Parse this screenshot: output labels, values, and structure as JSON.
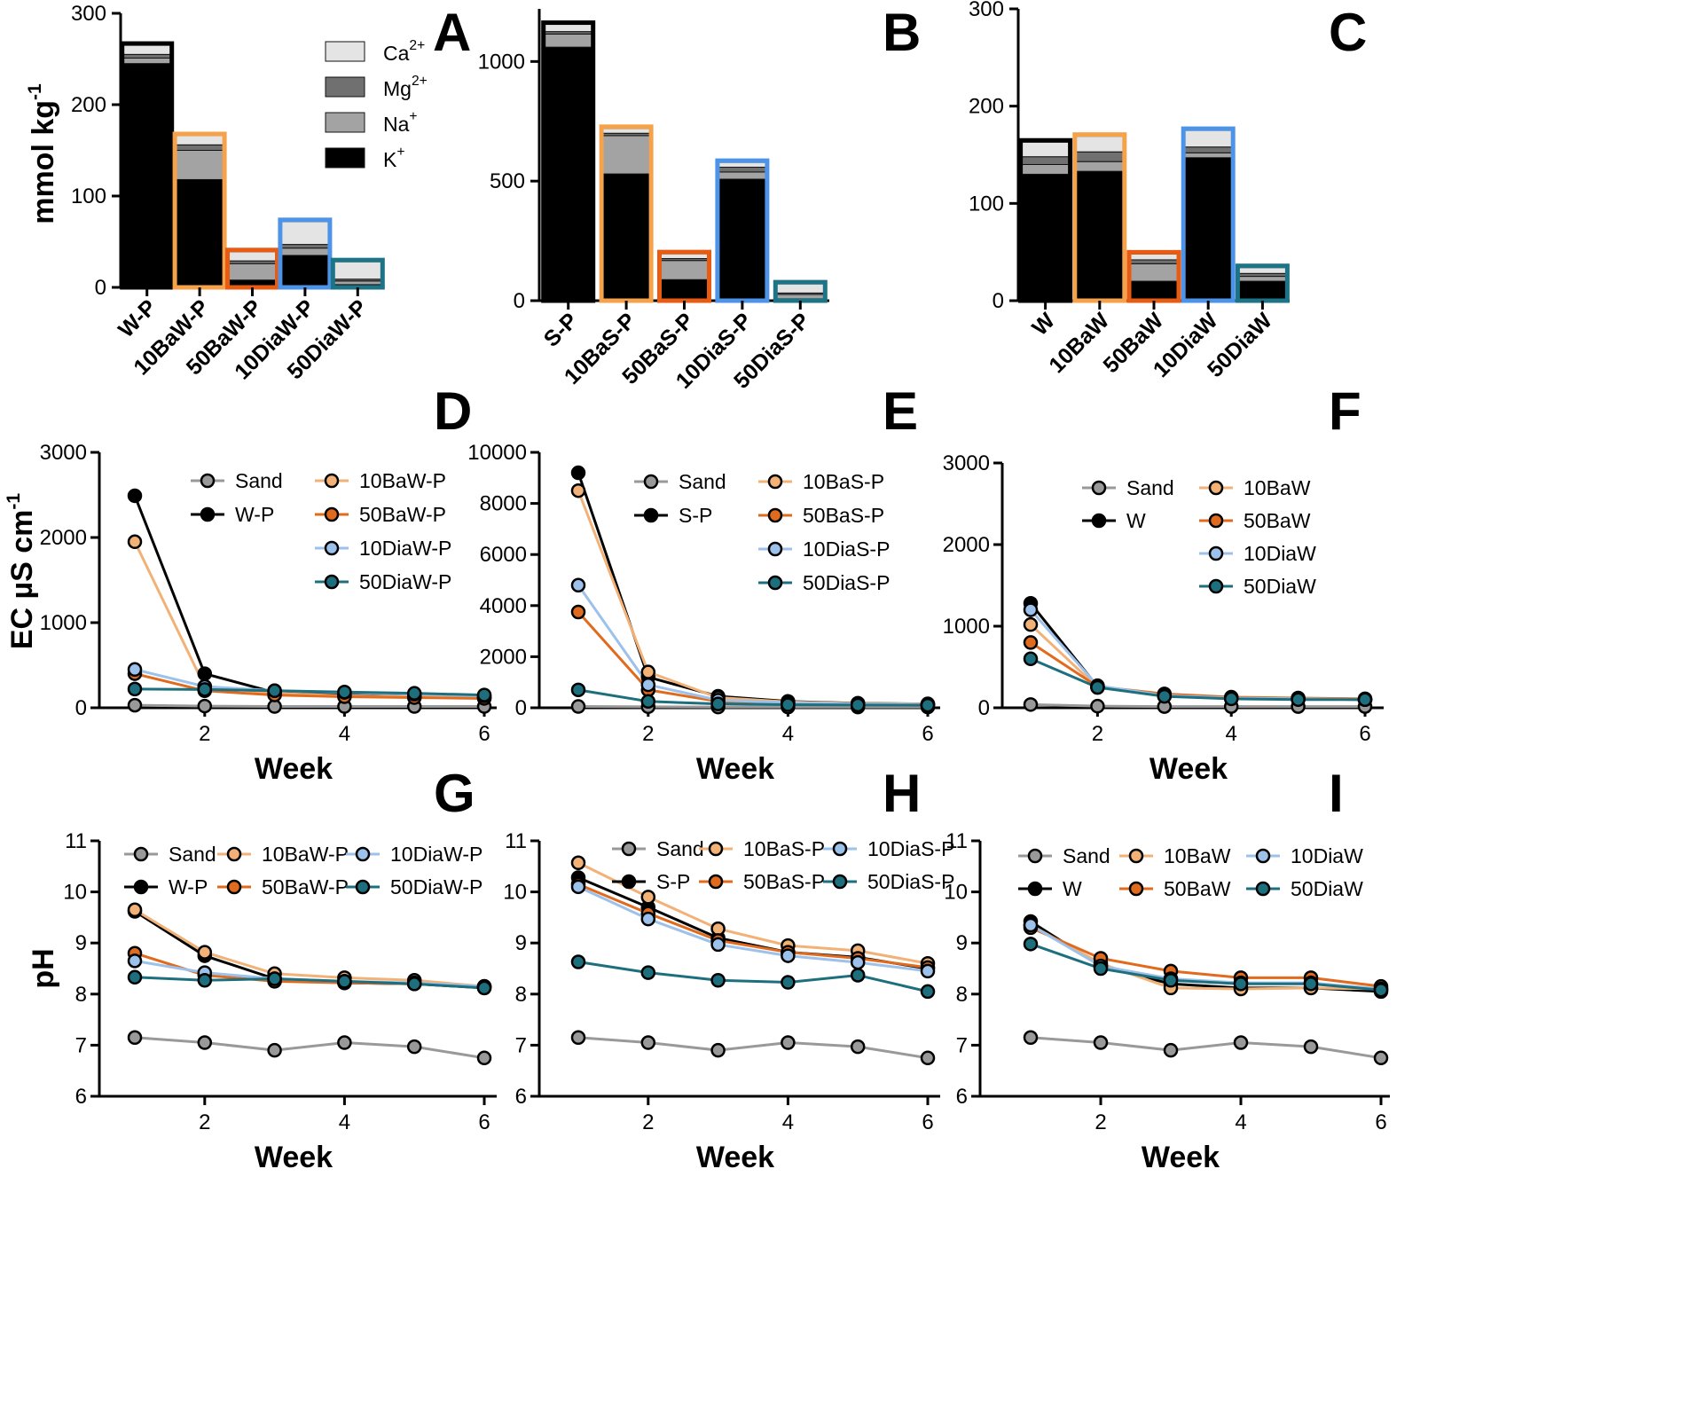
{
  "figure": {
    "colors": {
      "K": "#000000",
      "Na": "#a3a3a3",
      "Mg": "#707070",
      "Ca": "#e4e4e4",
      "Sand": "#999999",
      "plain": "#000000",
      "10Ba": "#f2b277",
      "50Ba": "#e06a1e",
      "10Dia": "#9cc1ea",
      "50Dia": "#1d6f7d",
      "outline_10Ba": "#f5a24a",
      "outline_50Ba": "#e85b12",
      "outline_10Dia": "#4d94e8",
      "outline_50Dia": "#1c7486"
    },
    "bar_legend": [
      {
        "key": "Ca",
        "base": "Ca",
        "sup": "2+"
      },
      {
        "key": "Mg",
        "base": "Mg",
        "sup": "2+"
      },
      {
        "key": "Na",
        "base": "Na",
        "sup": "+"
      },
      {
        "key": "K",
        "base": "K",
        "sup": "+"
      }
    ]
  },
  "chart_data": [
    {
      "id": "A",
      "panel": "A",
      "type": "bar",
      "stacked": true,
      "ylabel_base": "mmol kg",
      "ylabel_sup": "-1",
      "ylim": [
        0,
        300
      ],
      "yticks": [
        "0",
        "100",
        "200",
        "300"
      ],
      "categories": [
        "W-P",
        "10BaW-P",
        "50BaW-P",
        "10DiaW-P",
        "50DiaW-P"
      ],
      "outlines": [
        "plain",
        "10Ba",
        "50Ba",
        "10Dia",
        "50Dia"
      ],
      "series": [
        {
          "name": "K+",
          "key": "K",
          "values": [
            245,
            118,
            8,
            35,
            3
          ]
        },
        {
          "name": "Na+",
          "key": "Na",
          "values": [
            6,
            32,
            18,
            8,
            4
          ]
        },
        {
          "name": "Mg2+",
          "key": "Mg",
          "values": [
            4,
            6,
            3,
            4,
            2
          ]
        },
        {
          "name": "Ca2+",
          "key": "Ca",
          "values": [
            10,
            10,
            10,
            25,
            19
          ]
        }
      ]
    },
    {
      "id": "B",
      "panel": "B",
      "type": "bar",
      "stacked": true,
      "ylim": [
        0,
        1220
      ],
      "yticks": [
        "0",
        "500",
        "1000"
      ],
      "categories": [
        "S-P",
        "10BaS-P",
        "50BaS-P",
        "10DiaS-P",
        "50DiaS-P"
      ],
      "outlines": [
        "plain",
        "10Ba",
        "50Ba",
        "10Dia",
        "50Dia"
      ],
      "series": [
        {
          "name": "K+",
          "key": "K",
          "values": [
            1060,
            530,
            88,
            508,
            8
          ]
        },
        {
          "name": "Na+",
          "key": "Na",
          "values": [
            55,
            160,
            80,
            30,
            18
          ]
        },
        {
          "name": "Mg2+",
          "key": "Mg",
          "values": [
            10,
            10,
            8,
            20,
            6
          ]
        },
        {
          "name": "Ca2+",
          "key": "Ca",
          "values": [
            30,
            20,
            20,
            20,
            38
          ]
        }
      ]
    },
    {
      "id": "C",
      "panel": "C",
      "type": "bar",
      "stacked": true,
      "ylim": [
        0,
        300
      ],
      "yticks": [
        "0",
        "100",
        "200",
        "300"
      ],
      "categories": [
        "W",
        "10BaW",
        "50BaW",
        "10DiaW",
        "50DiaW"
      ],
      "outlines": [
        "plain",
        "10Ba",
        "50Ba",
        "10Dia",
        "50Dia"
      ],
      "series": [
        {
          "name": "K+",
          "key": "K",
          "values": [
            130,
            133,
            20,
            147,
            20
          ]
        },
        {
          "name": "Na+",
          "key": "Na",
          "values": [
            10,
            10,
            18,
            5,
            5
          ]
        },
        {
          "name": "Mg2+",
          "key": "Mg",
          "values": [
            8,
            10,
            4,
            6,
            3
          ]
        },
        {
          "name": "Ca2+",
          "key": "Ca",
          "values": [
            15,
            16,
            6,
            17,
            6
          ]
        }
      ]
    },
    {
      "id": "D",
      "panel": "D",
      "type": "line",
      "ylabel_base": "EC µS cm",
      "ylabel_sup": "-1",
      "xlabel": "Week",
      "ylim": [
        0,
        3000
      ],
      "yticks": [
        "0",
        "1000",
        "2000",
        "3000"
      ],
      "xlim": [
        1,
        6
      ],
      "xticks": [
        "2",
        "4",
        "6"
      ],
      "x": [
        1,
        2,
        3,
        4,
        5,
        6
      ],
      "series": [
        {
          "name": "Sand",
          "key": "Sand",
          "values": [
            30,
            20,
            15,
            15,
            15,
            15
          ]
        },
        {
          "name": "W-P",
          "key": "plain",
          "values": [
            2490,
            400,
            180,
            150,
            130,
            120
          ]
        },
        {
          "name": "10BaW-P",
          "key": "10Ba",
          "values": [
            1950,
            250,
            170,
            140,
            130,
            120
          ]
        },
        {
          "name": "50BaW-P",
          "key": "50Ba",
          "values": [
            400,
            200,
            150,
            130,
            120,
            110
          ]
        },
        {
          "name": "10DiaW-P",
          "key": "10Dia",
          "values": [
            450,
            250,
            200,
            180,
            160,
            140
          ]
        },
        {
          "name": "50DiaW-P",
          "key": "50Dia",
          "values": [
            220,
            215,
            200,
            185,
            170,
            150
          ]
        }
      ],
      "legend": [
        {
          "col": 0,
          "row": 0,
          "series": "Sand"
        },
        {
          "col": 0,
          "row": 1,
          "series": "W-P"
        },
        {
          "col": 1,
          "row": 0,
          "series": "10BaW-P"
        },
        {
          "col": 1,
          "row": 1,
          "series": "50BaW-P"
        },
        {
          "col": 1,
          "row": 2,
          "series": "10DiaW-P"
        },
        {
          "col": 1,
          "row": 3,
          "series": "50DiaW-P"
        }
      ]
    },
    {
      "id": "E",
      "panel": "E",
      "type": "line",
      "xlabel": "Week",
      "ylim": [
        0,
        10000
      ],
      "yticks": [
        "0",
        "2000",
        "4000",
        "6000",
        "8000",
        "10000"
      ],
      "xlim": [
        1,
        6
      ],
      "xticks": [
        "2",
        "4",
        "6"
      ],
      "x": [
        1,
        2,
        3,
        4,
        5,
        6
      ],
      "series": [
        {
          "name": "Sand",
          "key": "Sand",
          "values": [
            50,
            40,
            30,
            30,
            30,
            30
          ]
        },
        {
          "name": "S-P",
          "key": "plain",
          "values": [
            9200,
            1200,
            450,
            250,
            180,
            150
          ]
        },
        {
          "name": "10BaS-P",
          "key": "10Ba",
          "values": [
            8500,
            1400,
            400,
            230,
            170,
            150
          ]
        },
        {
          "name": "50BaS-P",
          "key": "50Ba",
          "values": [
            3750,
            700,
            250,
            180,
            150,
            130
          ]
        },
        {
          "name": "10DiaS-P",
          "key": "10Dia",
          "values": [
            4800,
            900,
            300,
            200,
            150,
            130
          ]
        },
        {
          "name": "50DiaS-P",
          "key": "50Dia",
          "values": [
            700,
            250,
            150,
            120,
            110,
            100
          ]
        }
      ],
      "legend": [
        {
          "col": 0,
          "row": 0,
          "series": "Sand"
        },
        {
          "col": 0,
          "row": 1,
          "series": "S-P"
        },
        {
          "col": 1,
          "row": 0,
          "series": "10BaS-P"
        },
        {
          "col": 1,
          "row": 1,
          "series": "50BaS-P"
        },
        {
          "col": 1,
          "row": 2,
          "series": "10DiaS-P"
        },
        {
          "col": 1,
          "row": 3,
          "series": "50DiaS-P"
        }
      ]
    },
    {
      "id": "F",
      "panel": "F",
      "type": "line",
      "xlabel": "Week",
      "ylim": [
        0,
        3000
      ],
      "yticks": [
        "0",
        "1000",
        "2000",
        "3000"
      ],
      "xlim": [
        1,
        6
      ],
      "xticks": [
        "2",
        "4",
        "6"
      ],
      "x": [
        1,
        2,
        3,
        4,
        5,
        6
      ],
      "series": [
        {
          "name": "Sand",
          "key": "Sand",
          "values": [
            40,
            20,
            15,
            15,
            15,
            15
          ]
        },
        {
          "name": "W",
          "key": "plain",
          "values": [
            1280,
            260,
            160,
            120,
            110,
            100
          ]
        },
        {
          "name": "10BaW",
          "key": "10Ba",
          "values": [
            1020,
            250,
            150,
            120,
            110,
            100
          ]
        },
        {
          "name": "50BaW",
          "key": "50Ba",
          "values": [
            800,
            260,
            170,
            130,
            120,
            110
          ]
        },
        {
          "name": "10DiaW",
          "key": "10Dia",
          "values": [
            1200,
            270,
            150,
            120,
            110,
            100
          ]
        },
        {
          "name": "50DiaW",
          "key": "50Dia",
          "values": [
            600,
            250,
            140,
            110,
            100,
            100
          ]
        }
      ],
      "legend": [
        {
          "col": 0,
          "row": 0,
          "series": "Sand"
        },
        {
          "col": 0,
          "row": 1,
          "series": "W"
        },
        {
          "col": 1,
          "row": 0,
          "series": "10BaW"
        },
        {
          "col": 1,
          "row": 1,
          "series": "50BaW"
        },
        {
          "col": 1,
          "row": 2,
          "series": "10DiaW"
        },
        {
          "col": 1,
          "row": 3,
          "series": "50DiaW"
        }
      ]
    },
    {
      "id": "G",
      "panel": "G",
      "type": "line",
      "ylabel": "pH",
      "xlabel": "Week",
      "ylim": [
        6,
        11
      ],
      "yticks": [
        "6",
        "7",
        "8",
        "9",
        "10",
        "11"
      ],
      "xlim": [
        1,
        6
      ],
      "xticks": [
        "2",
        "4",
        "6"
      ],
      "x": [
        1,
        2,
        3,
        4,
        5,
        6
      ],
      "series": [
        {
          "name": "Sand",
          "key": "Sand",
          "values": [
            7.15,
            7.05,
            6.9,
            7.05,
            6.97,
            6.75
          ]
        },
        {
          "name": "W-P",
          "key": "plain",
          "values": [
            9.62,
            8.75,
            8.3,
            8.22,
            8.2,
            8.12
          ]
        },
        {
          "name": "10BaW-P",
          "key": "10Ba",
          "values": [
            9.65,
            8.82,
            8.4,
            8.32,
            8.27,
            8.15
          ]
        },
        {
          "name": "50BaW-P",
          "key": "50Ba",
          "values": [
            8.8,
            8.37,
            8.25,
            8.22,
            8.2,
            8.15
          ]
        },
        {
          "name": "10DiaW-P",
          "key": "10Dia",
          "values": [
            8.65,
            8.42,
            8.3,
            8.25,
            8.22,
            8.15
          ]
        },
        {
          "name": "50DiaW-P",
          "key": "50Dia",
          "values": [
            8.33,
            8.27,
            8.3,
            8.25,
            8.2,
            8.12
          ]
        }
      ],
      "legend": [
        {
          "col": 0,
          "row": 0,
          "series": "Sand"
        },
        {
          "col": 0,
          "row": 1,
          "series": "W-P"
        },
        {
          "col": 1,
          "row": 0,
          "series": "10BaW-P"
        },
        {
          "col": 1,
          "row": 1,
          "series": "50BaW-P"
        },
        {
          "col": 2,
          "row": 0,
          "series": "10DiaW-P"
        },
        {
          "col": 2,
          "row": 1,
          "series": "50DiaW-P"
        }
      ]
    },
    {
      "id": "H",
      "panel": "H",
      "type": "line",
      "xlabel": "Week",
      "ylim": [
        6,
        11
      ],
      "yticks": [
        "6",
        "7",
        "8",
        "9",
        "10",
        "11"
      ],
      "xlim": [
        1,
        6
      ],
      "xticks": [
        "2",
        "4",
        "6"
      ],
      "x": [
        1,
        2,
        3,
        4,
        5,
        6
      ],
      "series": [
        {
          "name": "Sand",
          "key": "Sand",
          "values": [
            7.15,
            7.05,
            6.9,
            7.05,
            6.97,
            6.75
          ]
        },
        {
          "name": "S-P",
          "key": "plain",
          "values": [
            10.28,
            9.7,
            9.1,
            8.82,
            8.72,
            8.5
          ]
        },
        {
          "name": "10BaS-P",
          "key": "10Ba",
          "values": [
            10.57,
            9.9,
            9.28,
            8.95,
            8.85,
            8.6
          ]
        },
        {
          "name": "50BaS-P",
          "key": "50Ba",
          "values": [
            10.15,
            9.58,
            9.05,
            8.82,
            8.7,
            8.52
          ]
        },
        {
          "name": "10DiaS-P",
          "key": "10Dia",
          "values": [
            10.1,
            9.47,
            8.97,
            8.75,
            8.62,
            8.45
          ]
        },
        {
          "name": "50DiaS-P",
          "key": "50Dia",
          "values": [
            8.63,
            8.42,
            8.27,
            8.23,
            8.37,
            8.05
          ]
        }
      ],
      "legend": [
        {
          "col": 0,
          "row": 0,
          "series": "Sand"
        },
        {
          "col": 0,
          "row": 1,
          "series": "S-P"
        },
        {
          "col": 1,
          "row": 0,
          "series": "10BaS-P"
        },
        {
          "col": 1,
          "row": 1,
          "series": "50BaS-P"
        },
        {
          "col": 2,
          "row": 0,
          "series": "10DiaS-P"
        },
        {
          "col": 2,
          "row": 1,
          "series": "50DiaS-P"
        }
      ]
    },
    {
      "id": "I",
      "panel": "I",
      "type": "line",
      "xlabel": "Week",
      "ylim": [
        6,
        11
      ],
      "yticks": [
        "6",
        "7",
        "8",
        "9",
        "10",
        "11"
      ],
      "xlim": [
        1,
        6
      ],
      "xticks": [
        "2",
        "4",
        "6"
      ],
      "x": [
        1,
        2,
        3,
        4,
        5,
        6
      ],
      "series": [
        {
          "name": "Sand",
          "key": "Sand",
          "values": [
            7.15,
            7.05,
            6.9,
            7.05,
            6.97,
            6.75
          ]
        },
        {
          "name": "W",
          "key": "plain",
          "values": [
            9.42,
            8.55,
            8.2,
            8.12,
            8.12,
            8.05
          ]
        },
        {
          "name": "10BaW",
          "key": "10Ba",
          "values": [
            9.35,
            8.6,
            8.12,
            8.1,
            8.12,
            8.1
          ]
        },
        {
          "name": "50BaW",
          "key": "50Ba",
          "values": [
            9.3,
            8.7,
            8.45,
            8.32,
            8.32,
            8.15
          ]
        },
        {
          "name": "10DiaW",
          "key": "10Dia",
          "values": [
            9.35,
            8.55,
            8.3,
            8.22,
            8.22,
            8.1
          ]
        },
        {
          "name": "50DiaW",
          "key": "50Dia",
          "values": [
            8.98,
            8.5,
            8.27,
            8.2,
            8.2,
            8.08
          ]
        }
      ],
      "legend": [
        {
          "col": 0,
          "row": 0,
          "series": "Sand"
        },
        {
          "col": 0,
          "row": 1,
          "series": "W"
        },
        {
          "col": 1,
          "row": 0,
          "series": "10BaW"
        },
        {
          "col": 1,
          "row": 1,
          "series": "50BaW"
        },
        {
          "col": 2,
          "row": 0,
          "series": "10DiaW"
        },
        {
          "col": 2,
          "row": 1,
          "series": "50DiaW"
        }
      ]
    }
  ]
}
